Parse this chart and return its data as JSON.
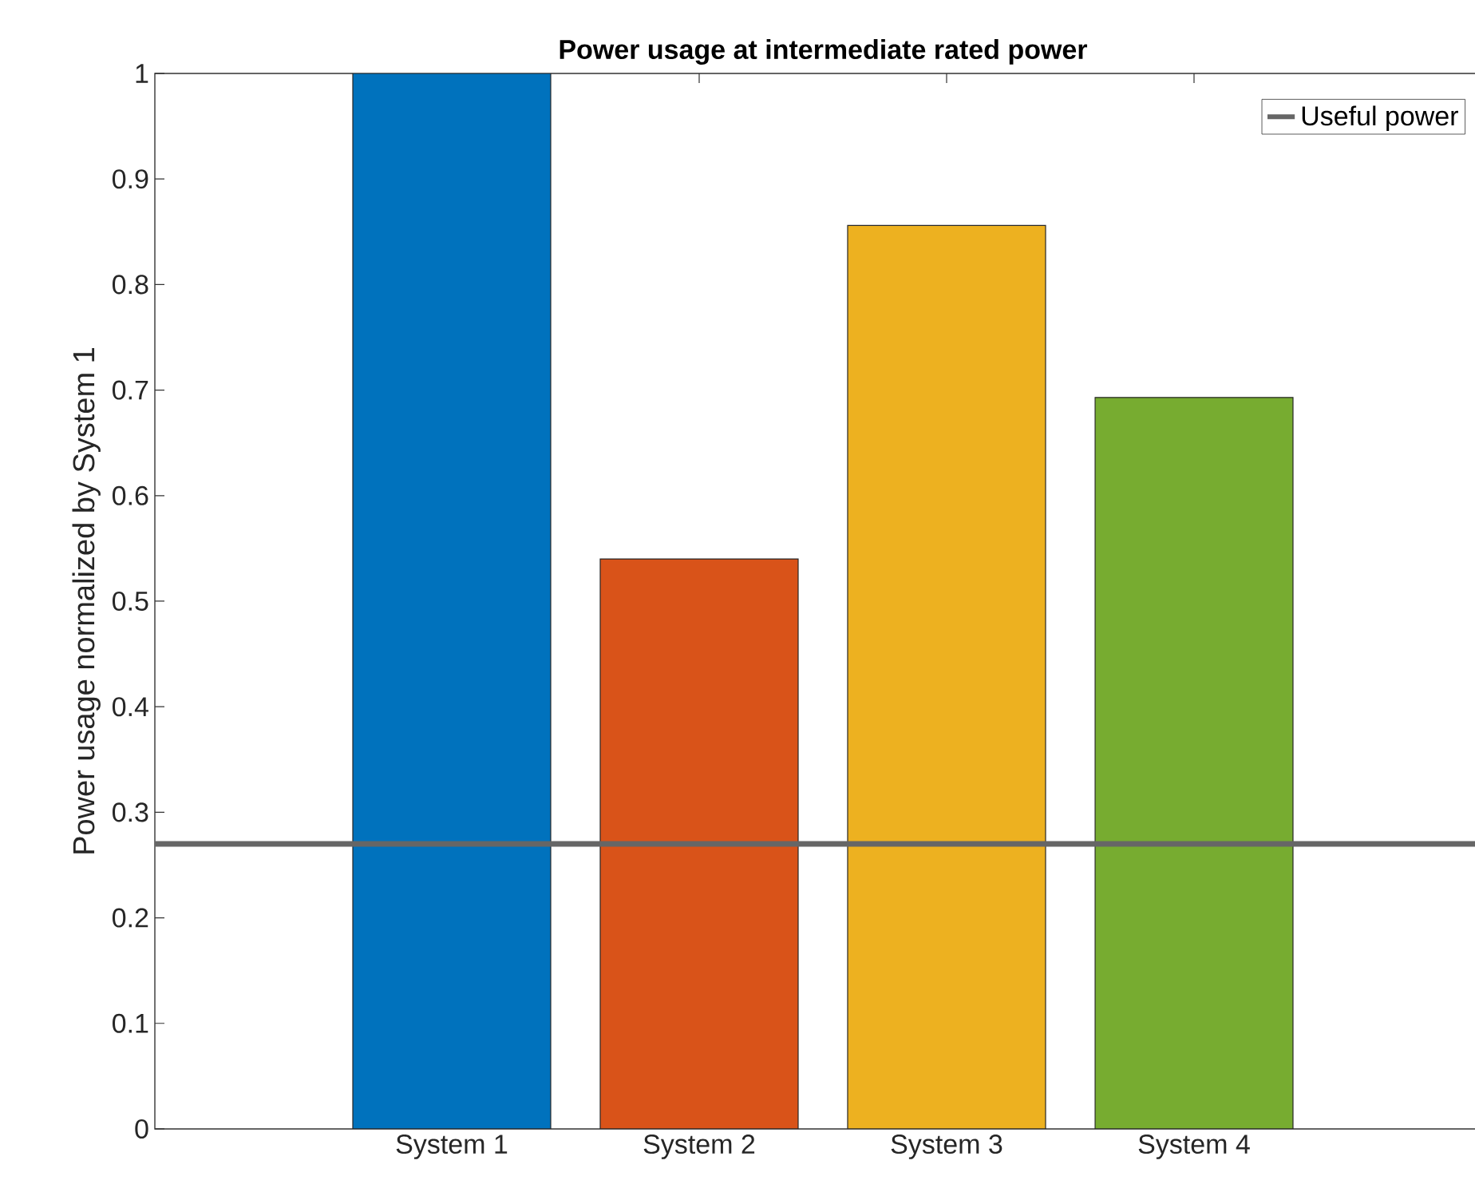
{
  "chart_data": {
    "type": "bar",
    "title": "Power usage at intermediate rated power",
    "ylabel": "Power usage normalized by System 1",
    "categories": [
      "System 1",
      "System 2",
      "System 3",
      "System 4"
    ],
    "values": [
      1,
      0.54,
      0.856,
      0.693
    ],
    "colors": [
      "#0072bd",
      "#d95319",
      "#edb120",
      "#77ac30"
    ],
    "ylim": [
      0,
      1
    ],
    "yticks": [
      0,
      0.1,
      0.2,
      0.3,
      0.4,
      0.5,
      0.6,
      0.7,
      0.8,
      0.9,
      1
    ],
    "ref_lines": [
      {
        "axis": "y",
        "value": 0.27,
        "label": "Useful power",
        "color": "#666666",
        "line_style": "solid"
      }
    ],
    "legend": "top right",
    "grid": false
  }
}
